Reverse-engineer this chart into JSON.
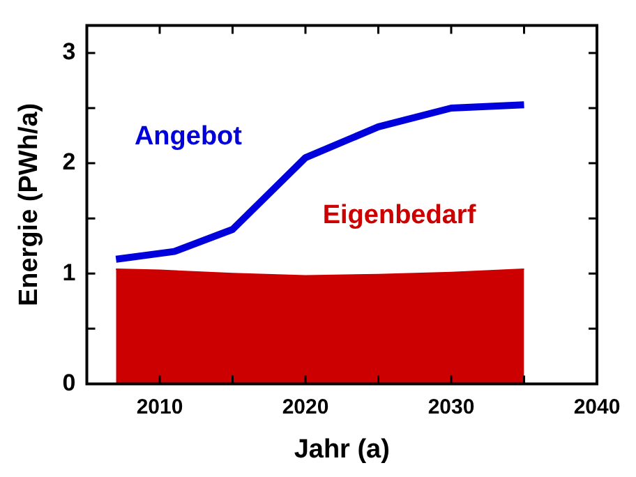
{
  "chart_data": {
    "type": "line",
    "xlabel": "Jahr (a)",
    "ylabel": "Energie (PWh/a)",
    "xlim": [
      2005,
      2040
    ],
    "xticks": [
      2010,
      {
        "value": 2015,
        "label": null
      },
      2020,
      {
        "value": 2025,
        "label": null
      },
      2030,
      {
        "value": 2035,
        "label": null
      },
      2040
    ],
    "ylim": [
      0,
      3.25
    ],
    "yticks": [
      0,
      {
        "value": 0.5,
        "label": null
      },
      1,
      {
        "value": 1.5,
        "label": null
      },
      2,
      {
        "value": 2.5,
        "label": null
      },
      3
    ],
    "grid": false,
    "legend": false,
    "series": [
      {
        "name": "Eigenbedarf",
        "type": "area",
        "color": "#cc0000",
        "x": [
          2007,
          2010,
          2015,
          2020,
          2025,
          2030,
          2035
        ],
        "values": [
          1.04,
          1.03,
          1.0,
          0.98,
          0.99,
          1.01,
          1.04
        ]
      },
      {
        "name": "Angebot",
        "type": "line",
        "color": "#0000dd",
        "x": [
          2007,
          2011,
          2015,
          2020,
          2025,
          2030,
          2035
        ],
        "values": [
          1.13,
          1.2,
          1.4,
          2.05,
          2.33,
          2.5,
          2.53
        ]
      }
    ]
  }
}
